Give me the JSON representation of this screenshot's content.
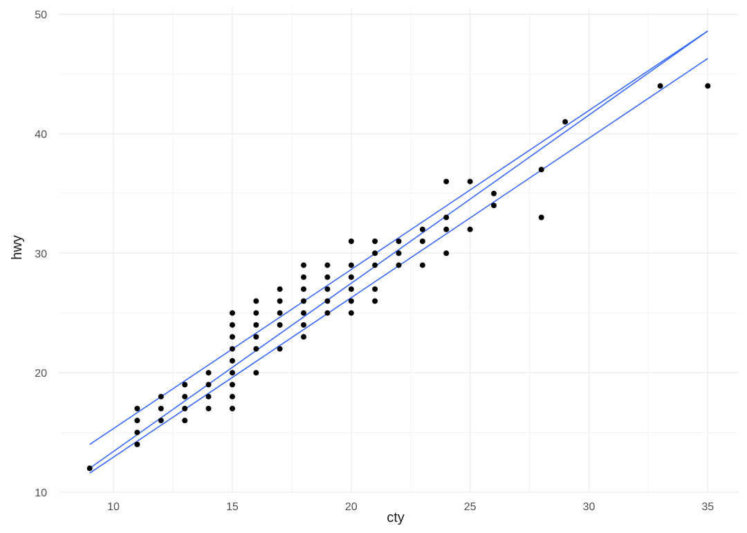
{
  "chart_data": {
    "type": "scatter",
    "title": "",
    "xlabel": "cty",
    "ylabel": "hwy",
    "xlim": [
      7.7,
      36.3
    ],
    "ylim": [
      10,
      50.5
    ],
    "x_ticks": [
      10,
      15,
      20,
      25,
      30,
      35
    ],
    "y_ticks": [
      10,
      20,
      30,
      40,
      50
    ],
    "x_tick_labels": [
      "10",
      "15",
      "20",
      "25",
      "30",
      "35"
    ],
    "y_tick_labels": [
      "10",
      "20",
      "30",
      "40",
      "50"
    ],
    "grid": true,
    "legend": "none",
    "point_color": "#000000",
    "line_color": "#3366ff",
    "points": [
      [
        9,
        12
      ],
      [
        11,
        14
      ],
      [
        11,
        15
      ],
      [
        11,
        16
      ],
      [
        11,
        17
      ],
      [
        12,
        16
      ],
      [
        12,
        17
      ],
      [
        12,
        18
      ],
      [
        13,
        16
      ],
      [
        13,
        17
      ],
      [
        13,
        18
      ],
      [
        13,
        19
      ],
      [
        14,
        17
      ],
      [
        14,
        18
      ],
      [
        14,
        19
      ],
      [
        14,
        20
      ],
      [
        15,
        17
      ],
      [
        15,
        18
      ],
      [
        15,
        19
      ],
      [
        15,
        20
      ],
      [
        15,
        21
      ],
      [
        15,
        22
      ],
      [
        15,
        23
      ],
      [
        15,
        24
      ],
      [
        15,
        25
      ],
      [
        16,
        20
      ],
      [
        16,
        22
      ],
      [
        16,
        23
      ],
      [
        16,
        24
      ],
      [
        16,
        25
      ],
      [
        16,
        26
      ],
      [
        17,
        22
      ],
      [
        17,
        24
      ],
      [
        17,
        25
      ],
      [
        17,
        26
      ],
      [
        17,
        27
      ],
      [
        18,
        23
      ],
      [
        18,
        24
      ],
      [
        18,
        25
      ],
      [
        18,
        26
      ],
      [
        18,
        27
      ],
      [
        18,
        28
      ],
      [
        18,
        29
      ],
      [
        19,
        25
      ],
      [
        19,
        26
      ],
      [
        19,
        27
      ],
      [
        19,
        28
      ],
      [
        19,
        29
      ],
      [
        20,
        25
      ],
      [
        20,
        26
      ],
      [
        20,
        27
      ],
      [
        20,
        28
      ],
      [
        20,
        29
      ],
      [
        20,
        31
      ],
      [
        21,
        26
      ],
      [
        21,
        27
      ],
      [
        21,
        29
      ],
      [
        21,
        30
      ],
      [
        21,
        31
      ],
      [
        22,
        29
      ],
      [
        22,
        30
      ],
      [
        22,
        31
      ],
      [
        23,
        29
      ],
      [
        23,
        31
      ],
      [
        23,
        32
      ],
      [
        24,
        30
      ],
      [
        24,
        32
      ],
      [
        24,
        33
      ],
      [
        24,
        36
      ],
      [
        25,
        32
      ],
      [
        25,
        36
      ],
      [
        26,
        34
      ],
      [
        26,
        35
      ],
      [
        28,
        33
      ],
      [
        28,
        37
      ],
      [
        29,
        41
      ],
      [
        33,
        44
      ],
      [
        35,
        44
      ]
    ],
    "lines": [
      {
        "x": [
          9,
          35
        ],
        "y": [
          14.0,
          48.6
        ]
      },
      {
        "x": [
          9,
          35
        ],
        "y": [
          12.0,
          48.6
        ]
      },
      {
        "x": [
          9,
          35
        ],
        "y": [
          11.6,
          46.3
        ]
      }
    ]
  }
}
